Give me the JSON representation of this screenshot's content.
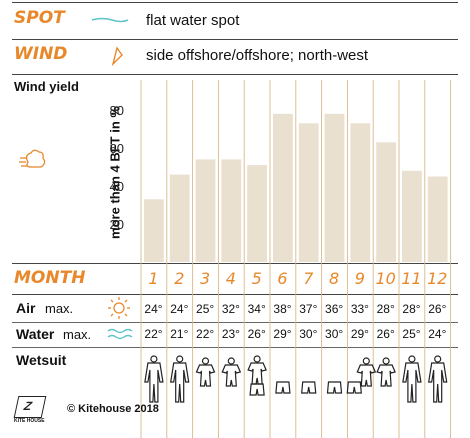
{
  "spot": {
    "label": "SPOT",
    "value": "flat water spot",
    "icon": "wave-line-icon"
  },
  "wind": {
    "label": "WIND",
    "value": "side offshore/offshore; north-west",
    "icon": "wind-direction-icon"
  },
  "wind_yield_title": "Wind yield",
  "y_axis_label": "more than 4 BFT in %",
  "month_label": "MONTH",
  "air": {
    "label": "Air",
    "suffix": "max.",
    "icon": "sun-icon",
    "values": [
      "24°",
      "24°",
      "25°",
      "32°",
      "34°",
      "38°",
      "37°",
      "36°",
      "33°",
      "28°",
      "28°",
      "26°"
    ]
  },
  "water": {
    "label": "Water",
    "suffix": "max.",
    "icon": "waves-icon",
    "values": [
      "22°",
      "21°",
      "22°",
      "23°",
      "26°",
      "29°",
      "30°",
      "30°",
      "29°",
      "26°",
      "25°",
      "24°"
    ]
  },
  "wetsuit": {
    "label": "Wetsuit",
    "types": [
      "full",
      "full",
      "shorty",
      "shorty",
      "shorty+shorts",
      "shorts",
      "shorts",
      "shorts",
      "shorts+shorty",
      "shorty",
      "full",
      "full"
    ]
  },
  "footer": {
    "copyright": "© Kitehouse 2018",
    "logo_text": "KITE HOUSE"
  },
  "colors": {
    "accent": "#e8882a",
    "bar": "#e9e0cf",
    "grid": "#d9b88a",
    "line": "#444444"
  },
  "chart_data": {
    "type": "bar",
    "title": "Wind yield",
    "ylabel": "more than 4 BFT in %",
    "xlabel": "MONTH",
    "categories": [
      "1",
      "2",
      "3",
      "4",
      "5",
      "6",
      "7",
      "8",
      "9",
      "10",
      "11",
      "12"
    ],
    "values": [
      33,
      46,
      54,
      54,
      51,
      78,
      73,
      78,
      73,
      63,
      48,
      45
    ],
    "ylim": [
      0,
      100
    ],
    "yticks": [
      20,
      40,
      60,
      80
    ],
    "grid": false
  }
}
